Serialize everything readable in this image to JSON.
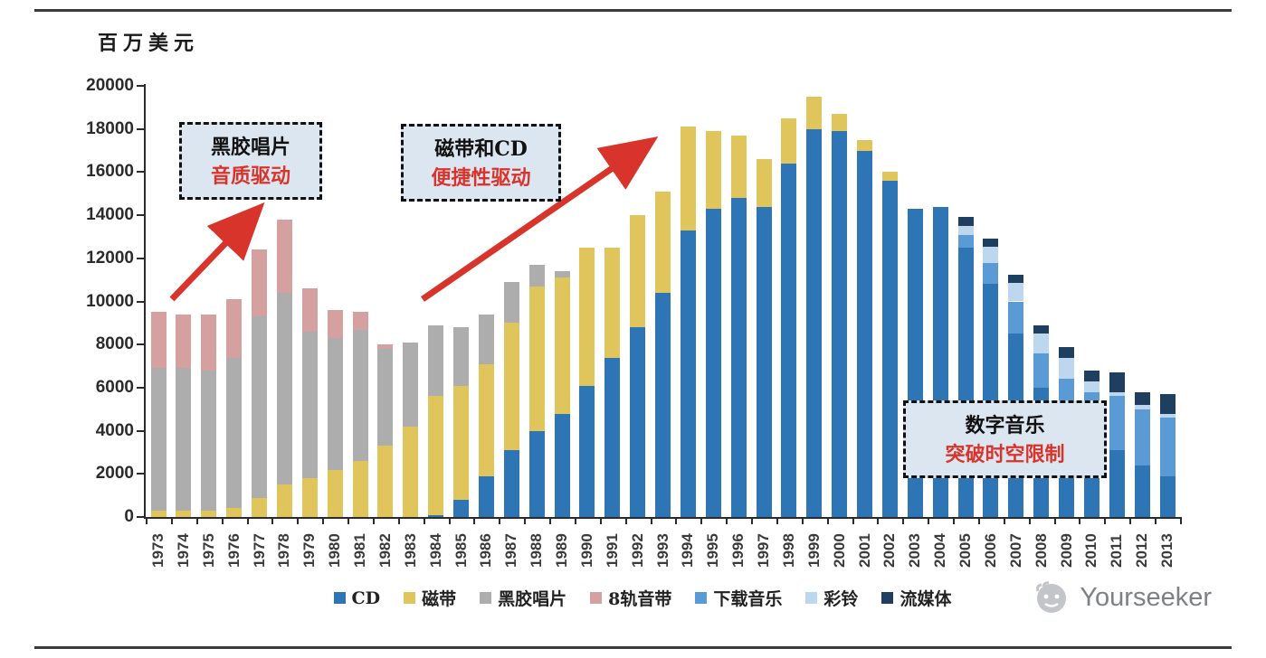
{
  "page": {
    "unit_label": "百万美元",
    "watermark": "Yourseeker"
  },
  "annotations": [
    {
      "line1": "黑胶唱片",
      "line2": "音质驱动"
    },
    {
      "line1": "磁带和CD",
      "line2": "便捷性驱动"
    },
    {
      "line1": "数字音乐",
      "line2": "突破时空限制"
    }
  ],
  "chart_data": {
    "type": "bar",
    "stacked": true,
    "title": "",
    "xlabel": "",
    "ylabel": "百万美元",
    "ylim": [
      0,
      20000
    ],
    "ytick_step": 2000,
    "grid": false,
    "legend_position": "bottom",
    "categories": [
      "1973",
      "1974",
      "1975",
      "1976",
      "1977",
      "1978",
      "1979",
      "1980",
      "1981",
      "1982",
      "1983",
      "1984",
      "1985",
      "1986",
      "1987",
      "1988",
      "1989",
      "1990",
      "1991",
      "1992",
      "1993",
      "1994",
      "1995",
      "1996",
      "1997",
      "1998",
      "1999",
      "2000",
      "2001",
      "2002",
      "2003",
      "2004",
      "2005",
      "2006",
      "2007",
      "2008",
      "2009",
      "2010",
      "2011",
      "2012",
      "2013"
    ],
    "series": [
      {
        "name": "CD",
        "color": "#2E75B6",
        "values": [
          0,
          0,
          0,
          0,
          0,
          0,
          0,
          0,
          0,
          0,
          0,
          100,
          800,
          1900,
          3100,
          4000,
          4800,
          6100,
          7400,
          8800,
          10400,
          13300,
          14300,
          14800,
          14400,
          16400,
          18000,
          17900,
          17000,
          15600,
          14300,
          14400,
          12500,
          10800,
          8500,
          6000,
          4300,
          3400,
          3100,
          2400,
          1900
        ]
      },
      {
        "name": "磁带",
        "color": "#E0C45C",
        "values": [
          300,
          300,
          300,
          400,
          900,
          1500,
          1800,
          2200,
          2600,
          3300,
          4200,
          5500,
          5300,
          5200,
          5900,
          6700,
          6300,
          6400,
          5100,
          5200,
          4700,
          4800,
          3600,
          2900,
          2200,
          2100,
          1500,
          800,
          500,
          400,
          0,
          0,
          0,
          0,
          0,
          0,
          0,
          0,
          0,
          0,
          0
        ]
      },
      {
        "name": "黑胶唱片",
        "color": "#ADADAD",
        "values": [
          6600,
          6600,
          6500,
          7000,
          8400,
          8900,
          6800,
          6100,
          6100,
          4500,
          3900,
          3300,
          2700,
          2300,
          1900,
          1000,
          300,
          0,
          0,
          0,
          0,
          0,
          0,
          0,
          0,
          0,
          0,
          0,
          0,
          0,
          0,
          0,
          0,
          0,
          0,
          0,
          0,
          0,
          0,
          0,
          0
        ]
      },
      {
        "name": "8轨音带",
        "color": "#D5A0A0",
        "values": [
          2600,
          2500,
          2600,
          2700,
          3100,
          3400,
          2000,
          1300,
          800,
          200,
          0,
          0,
          0,
          0,
          0,
          0,
          0,
          0,
          0,
          0,
          0,
          0,
          0,
          0,
          0,
          0,
          0,
          0,
          0,
          0,
          0,
          0,
          0,
          0,
          0,
          0,
          0,
          0,
          0,
          0,
          0
        ]
      },
      {
        "name": "下载音乐",
        "color": "#5B9BD5",
        "values": [
          0,
          0,
          0,
          0,
          0,
          0,
          0,
          0,
          0,
          0,
          0,
          0,
          0,
          0,
          0,
          0,
          0,
          0,
          0,
          0,
          0,
          0,
          0,
          0,
          0,
          0,
          0,
          0,
          0,
          0,
          0,
          0,
          600,
          1000,
          1500,
          1600,
          2100,
          2400,
          2500,
          2600,
          2700
        ]
      },
      {
        "name": "彩铃",
        "color": "#BDD7EE",
        "values": [
          0,
          0,
          0,
          0,
          0,
          0,
          0,
          0,
          0,
          0,
          0,
          0,
          0,
          0,
          0,
          0,
          0,
          0,
          0,
          0,
          0,
          0,
          0,
          0,
          0,
          0,
          0,
          0,
          0,
          0,
          0,
          0,
          400,
          750,
          850,
          900,
          1000,
          500,
          200,
          200,
          200
        ]
      },
      {
        "name": "流媒体",
        "color": "#1E3F5F",
        "values": [
          0,
          0,
          0,
          0,
          0,
          0,
          0,
          0,
          0,
          0,
          0,
          0,
          0,
          0,
          0,
          0,
          0,
          0,
          0,
          0,
          0,
          0,
          0,
          0,
          0,
          0,
          0,
          0,
          0,
          0,
          0,
          0,
          400,
          350,
          400,
          400,
          500,
          500,
          900,
          600,
          900
        ]
      }
    ]
  }
}
